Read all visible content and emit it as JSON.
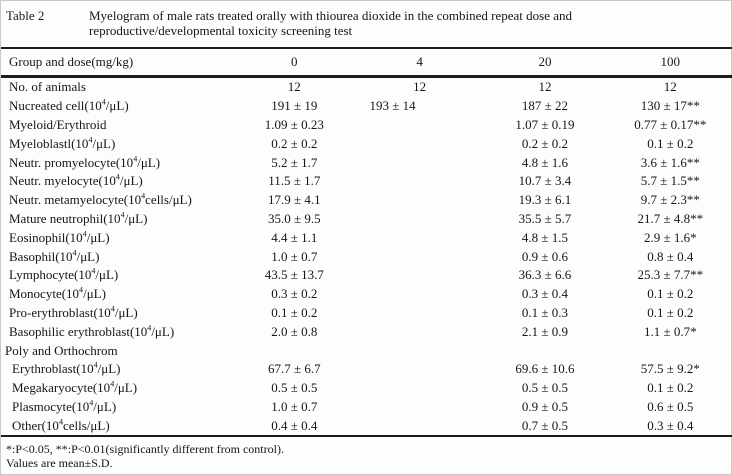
{
  "caption": {
    "table_label": "Table 2",
    "title_line1": "Myelogram of male rats treated orally with thiourea dioxide in the combined repeat dose and",
    "title_line2": "reproductive/developmental toxicity screening test"
  },
  "table": {
    "header": {
      "label": "Group and dose(mg/kg)",
      "doses": [
        "0",
        "4",
        "20",
        "100"
      ]
    },
    "rows": [
      {
        "label": "No. of animals",
        "values": [
          "12",
          "12",
          "12",
          "12"
        ]
      },
      {
        "label": "Nucreated cell(10^4/μL)",
        "values": [
          "191 ± 19",
          "193 ± 14",
          "187 ± 22",
          "130 ± 17**"
        ]
      },
      {
        "label": "Myeloid/Erythroid",
        "values": [
          "1.09 ± 0.23",
          "",
          "1.07 ± 0.19",
          "0.77 ± 0.17**"
        ]
      },
      {
        "label": "Myeloblastl(10^4/μL)",
        "values": [
          "0.2 ± 0.2",
          "",
          "0.2 ± 0.2",
          "0.1 ± 0.2"
        ]
      },
      {
        "label": "Neutr. promyelocyte(10^4/μL)",
        "values": [
          "5.2 ± 1.7",
          "",
          "4.8 ± 1.6",
          "3.6 ± 1.6**"
        ]
      },
      {
        "label": "Neutr. myelocyte(10^4/μL)",
        "values": [
          "11.5 ± 1.7",
          "",
          "10.7 ± 3.4",
          "5.7 ± 1.5**"
        ]
      },
      {
        "label": "Neutr. metamyelocyte(10^4cells/μL)",
        "values": [
          "17.9 ± 4.1",
          "",
          "19.3 ± 6.1",
          "9.7 ± 2.3**"
        ]
      },
      {
        "label": "Mature neutrophil(10^4/μL)",
        "values": [
          "35.0 ± 9.5",
          "",
          "35.5 ± 5.7",
          "21.7 ± 4.8**"
        ]
      },
      {
        "label": "Eosinophil(10^4/μL)",
        "values": [
          "4.4 ± 1.1",
          "",
          "4.8 ± 1.5",
          "2.9 ± 1.6*"
        ]
      },
      {
        "label": "Basophil(10^4/μL)",
        "values": [
          "1.0 ± 0.7",
          "",
          "0.9 ± 0.6",
          "0.8 ± 0.4"
        ]
      },
      {
        "label": "Lymphocyte(10^4/μL)",
        "values": [
          "43.5 ± 13.7",
          "",
          "36.3 ± 6.6",
          "25.3 ± 7.7**"
        ]
      },
      {
        "label": "Monocyte(10^4/μL)",
        "values": [
          "0.3 ± 0.2",
          "",
          "0.3 ± 0.4",
          "0.1 ± 0.2"
        ]
      },
      {
        "label": "Pro-erythroblast(10^4/μL)",
        "values": [
          "0.1 ± 0.2",
          "",
          "0.1 ± 0.3",
          "0.1 ± 0.2"
        ]
      },
      {
        "label": "Basophilic erythroblast(10^4/μL)",
        "values": [
          "2.0 ± 0.8",
          "",
          "2.1 ± 0.9",
          "1.1 ± 0.7*"
        ]
      },
      {
        "label": "Poly and Orthochrom",
        "values": [
          "",
          "",
          "",
          ""
        ],
        "section": true
      },
      {
        "label": "Erythroblast(10^4/μL)",
        "values": [
          "67.7 ± 6.7",
          "",
          "69.6 ± 10.6",
          "57.5 ± 9.2*"
        ],
        "indent": true
      },
      {
        "label": "Megakaryocyte(10^4/μL)",
        "values": [
          "0.5 ± 0.5",
          "",
          "0.5 ± 0.5",
          "0.1 ± 0.2"
        ],
        "indent": true
      },
      {
        "label": "Plasmocyte(10^4/μL)",
        "values": [
          "1.0 ± 0.7",
          "",
          "0.9 ± 0.5",
          "0.6 ± 0.5"
        ],
        "indent": true
      },
      {
        "label": "Other(10^4cells/μL)",
        "values": [
          "0.4 ± 0.4",
          "",
          "0.7 ± 0.5",
          "0.3 ± 0.4"
        ],
        "indent": true
      }
    ]
  },
  "footnotes": {
    "line1": "*:P<0.05, **:P<0.01(significantly different from control).",
    "line2": "Values are mean±S.D."
  }
}
